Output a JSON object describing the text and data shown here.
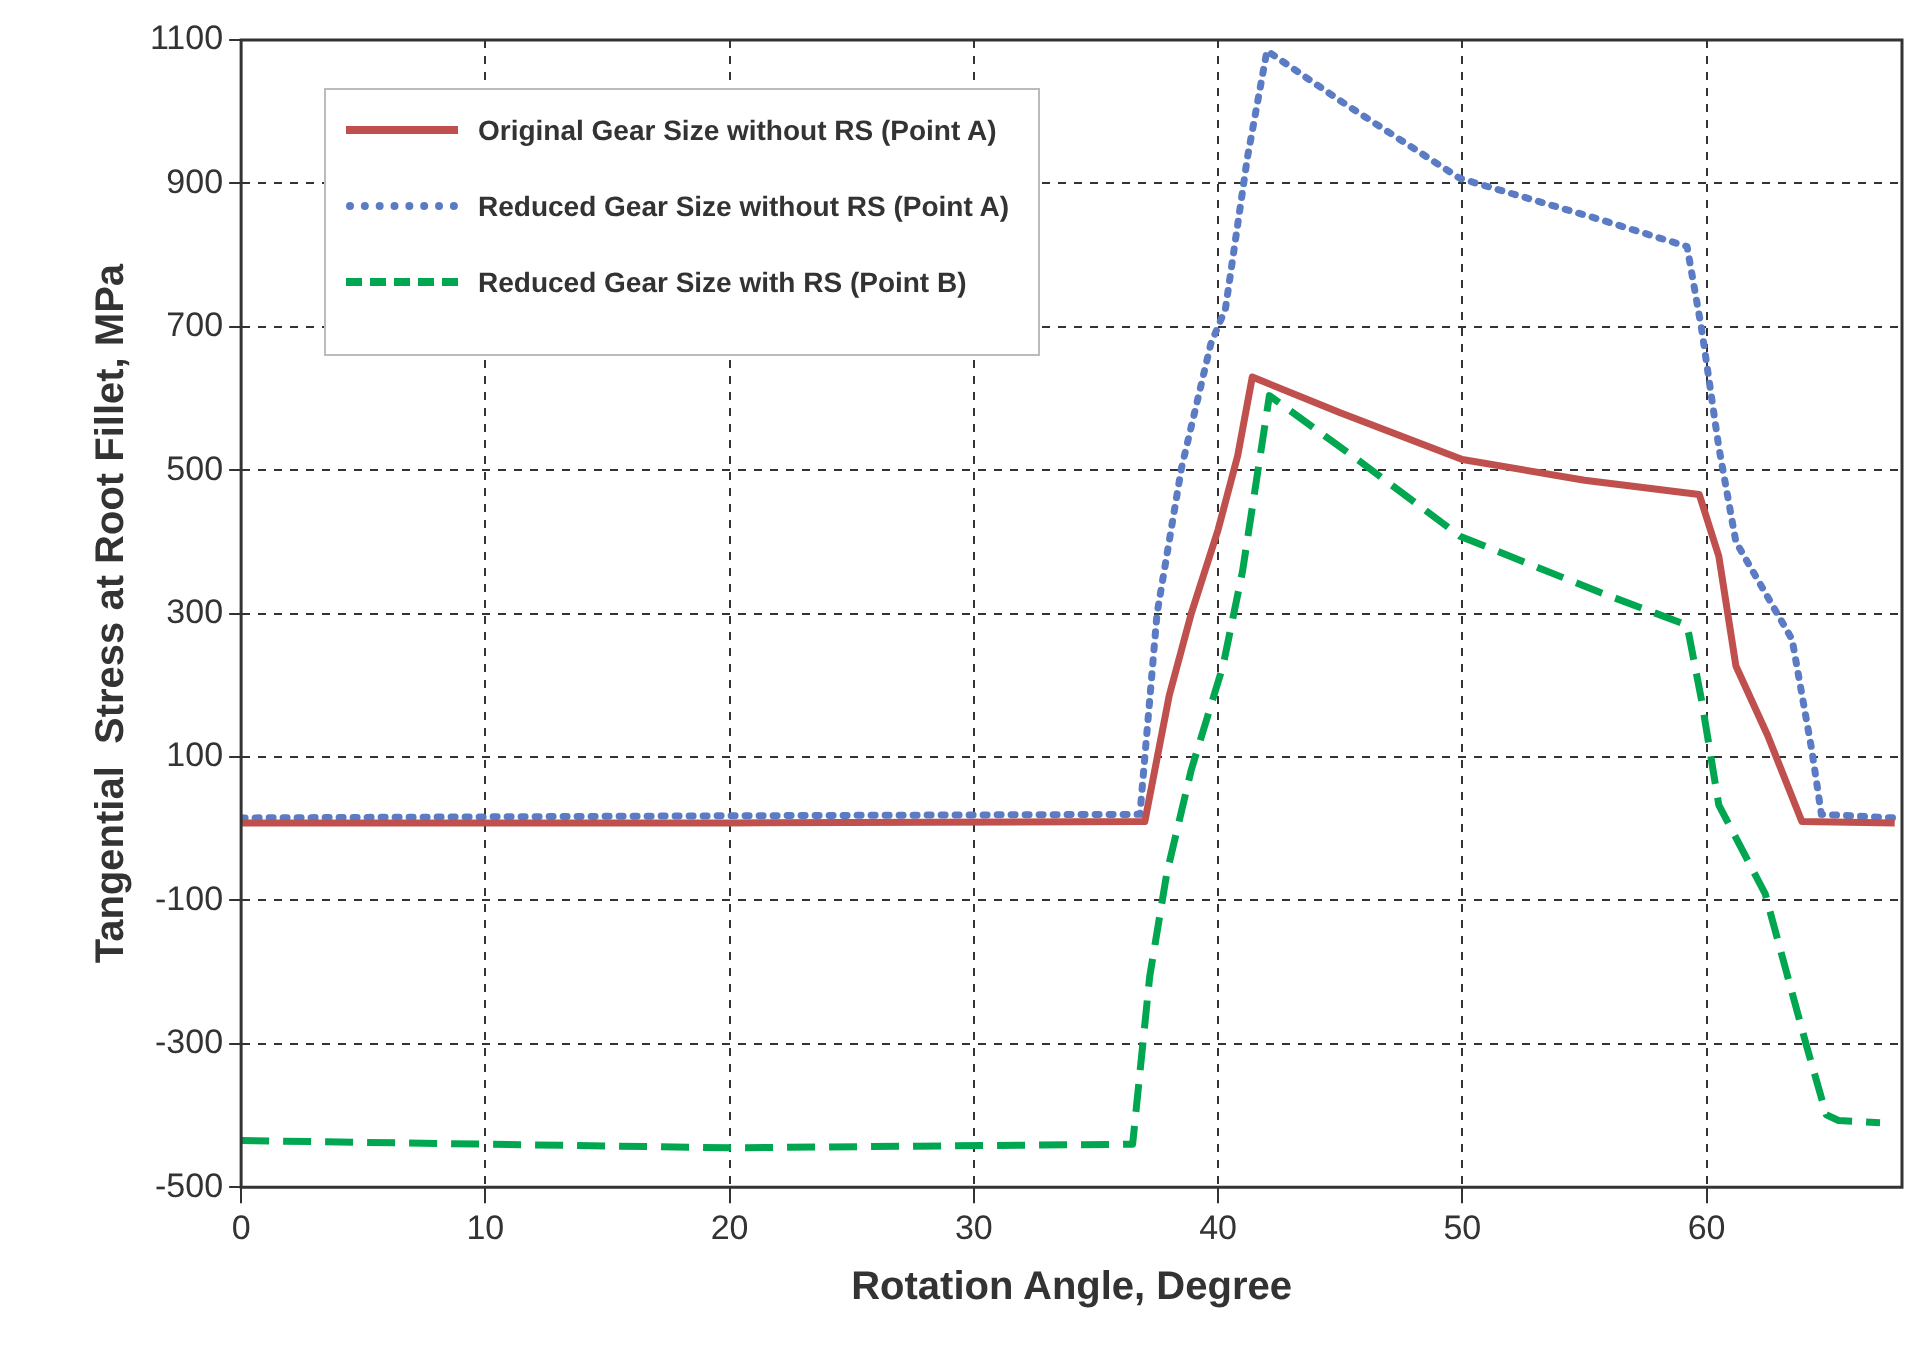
{
  "chart_data": {
    "type": "line",
    "xlabel": "Rotation Angle, Degree",
    "ylabel": "Tangential  Stress at Root Fillet, MPa",
    "xlim": [
      0,
      68
    ],
    "xticks": [
      0,
      10,
      20,
      30,
      40,
      50,
      60
    ],
    "ylim": [
      -500,
      1100
    ],
    "yticks": [
      -500,
      -300,
      -100,
      100,
      300,
      500,
      700,
      900,
      1100
    ],
    "grid": true,
    "legend": "top left",
    "marker": "none",
    "series": [
      {
        "name": "Original Gear Size without RS (Point A)",
        "color": "#c0504d",
        "line_style": "solid",
        "x": [
          0,
          20,
          37,
          38,
          38.9,
          40,
          40.8,
          41.4,
          45,
          50,
          55,
          59.7,
          60.5,
          61.2,
          62.5,
          63.9,
          67.7
        ],
        "values": [
          8,
          8,
          10,
          186,
          300,
          417,
          520,
          630,
          580,
          515,
          486,
          466,
          380,
          227,
          130,
          10,
          8
        ]
      },
      {
        "name": "Reduced Gear Size without RS (Point A)",
        "color": "#5b7cc4",
        "line_style": "dotted",
        "x": [
          0,
          20,
          36.8,
          37.5,
          38.5,
          39.7,
          40.3,
          41.2,
          42,
          45.1,
          49.9,
          55.6,
          59.2,
          59.8,
          60.5,
          61.2,
          63.5,
          64.3,
          64.7,
          67.7
        ],
        "values": [
          15,
          18,
          20,
          300,
          503,
          676,
          725,
          936,
          1085,
          1013,
          907,
          850,
          812,
          696,
          532,
          400,
          264,
          111,
          20,
          15
        ]
      },
      {
        "name": "Reduced Gear Size with RS (Point B)",
        "color": "#00a650",
        "line_style": "dashed",
        "x": [
          0,
          20,
          36.5,
          37.2,
          37.9,
          38.9,
          40.2,
          41,
          42.1,
          45.7,
          49.9,
          55.6,
          59.2,
          59.8,
          60.5,
          62.4,
          64.1,
          64.9,
          65.4,
          67.1
        ],
        "values": [
          -435,
          -445,
          -440,
          -206,
          -62,
          82,
          227,
          359,
          604,
          515,
          408,
          330,
          284,
          178,
          33,
          -91,
          -304,
          -399,
          -407,
          -410
        ]
      }
    ]
  }
}
